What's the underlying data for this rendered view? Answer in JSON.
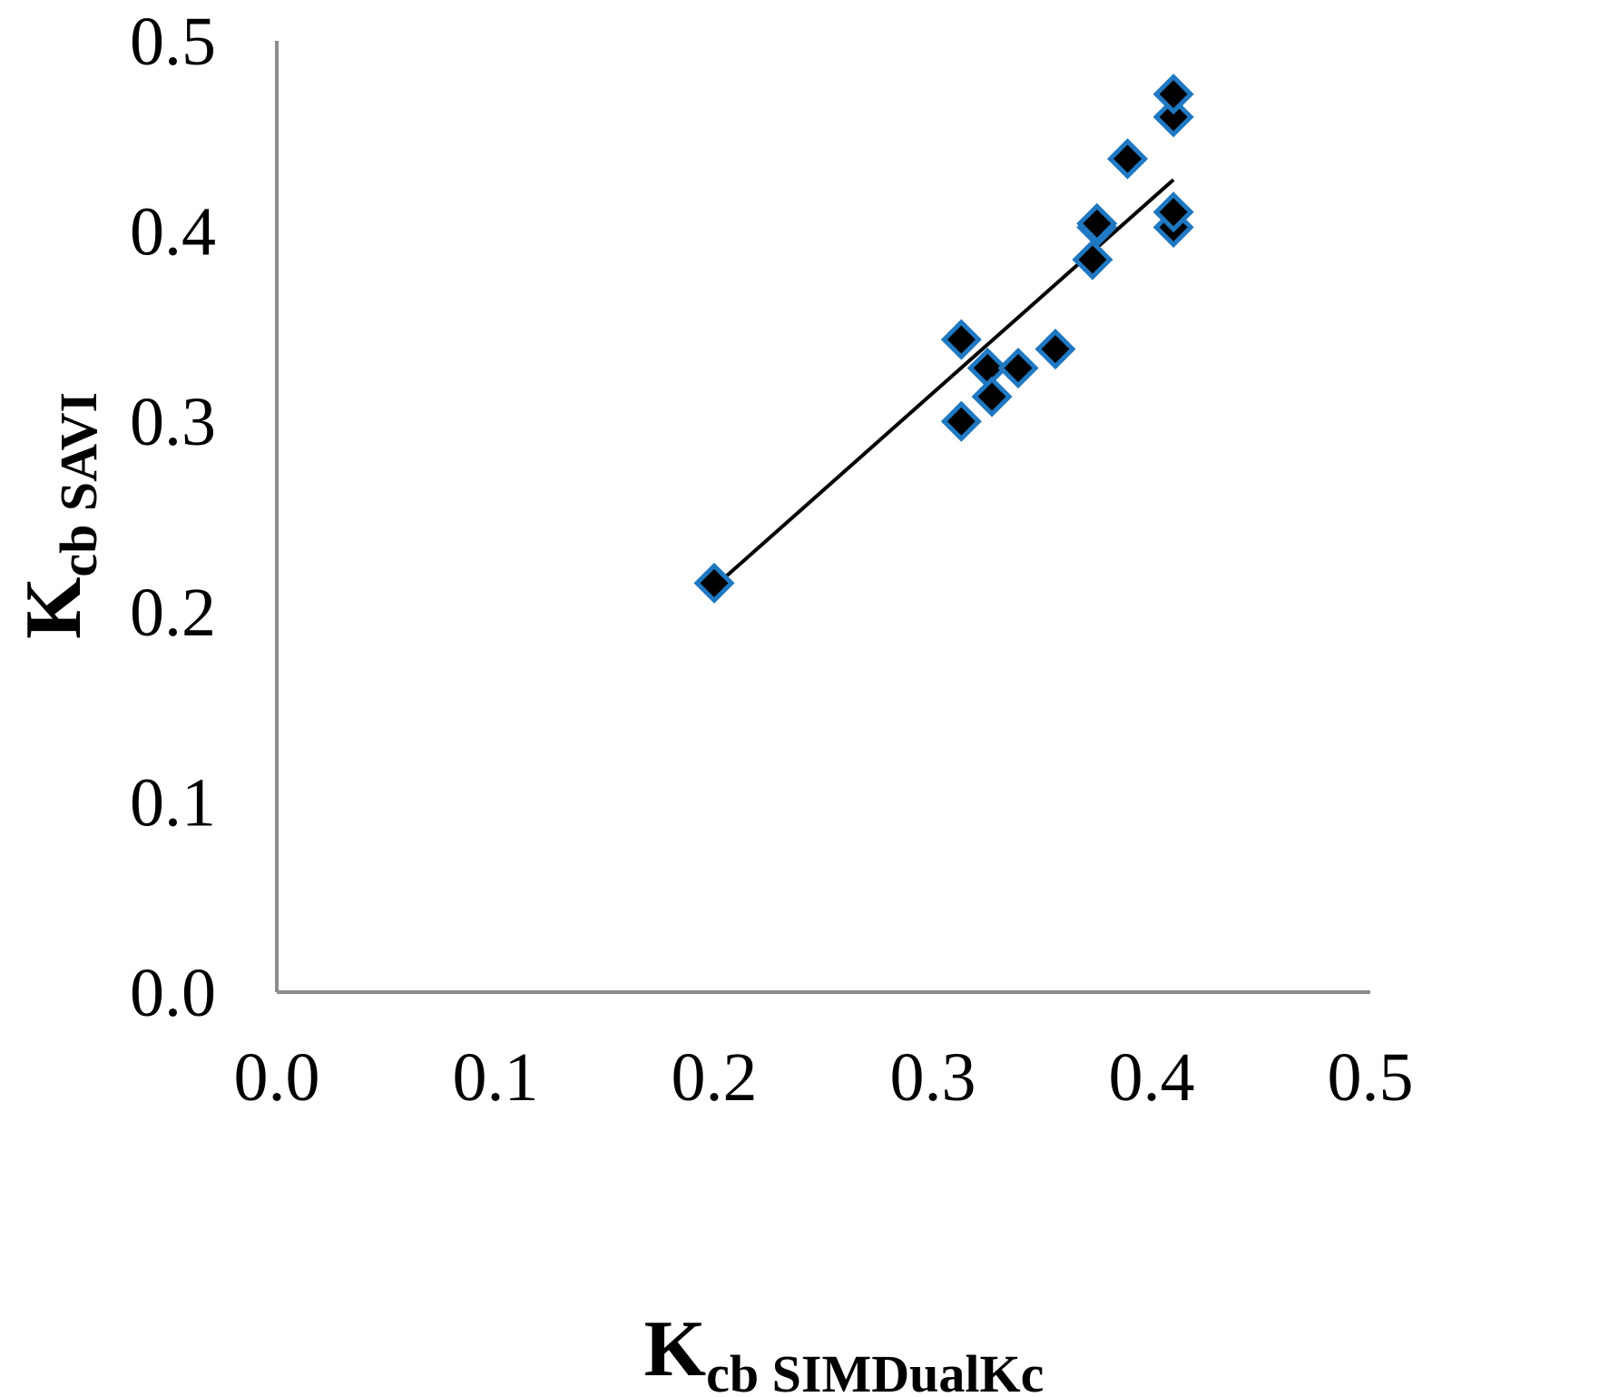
{
  "chart_data": {
    "type": "scatter",
    "xlabel": {
      "main": "K",
      "sub": "cb SIMDualKc"
    },
    "ylabel": {
      "main": "K",
      "sub": "cb SAVI"
    },
    "xlim": [
      0.0,
      0.5
    ],
    "ylim": [
      0.0,
      0.5
    ],
    "x_ticks": [
      "0.0",
      "0.1",
      "0.2",
      "0.3",
      "0.4",
      "0.5"
    ],
    "y_ticks": [
      "0.0",
      "0.1",
      "0.2",
      "0.3",
      "0.4",
      "0.5"
    ],
    "grid": false,
    "marker": "diamond",
    "marker_fill": "#000000",
    "marker_stroke": "#1f78c1",
    "trendline": {
      "type": "linear",
      "color": "#000000",
      "x": [
        0.2,
        0.41
      ],
      "y": [
        0.213,
        0.427
      ]
    },
    "points": [
      {
        "x": 0.2,
        "y": 0.215
      },
      {
        "x": 0.313,
        "y": 0.3
      },
      {
        "x": 0.313,
        "y": 0.343
      },
      {
        "x": 0.325,
        "y": 0.328
      },
      {
        "x": 0.327,
        "y": 0.313
      },
      {
        "x": 0.339,
        "y": 0.328
      },
      {
        "x": 0.356,
        "y": 0.338
      },
      {
        "x": 0.373,
        "y": 0.385
      },
      {
        "x": 0.375,
        "y": 0.402
      },
      {
        "x": 0.375,
        "y": 0.404
      },
      {
        "x": 0.389,
        "y": 0.438
      },
      {
        "x": 0.41,
        "y": 0.402
      },
      {
        "x": 0.41,
        "y": 0.41
      },
      {
        "x": 0.41,
        "y": 0.46
      },
      {
        "x": 0.41,
        "y": 0.472
      }
    ]
  }
}
